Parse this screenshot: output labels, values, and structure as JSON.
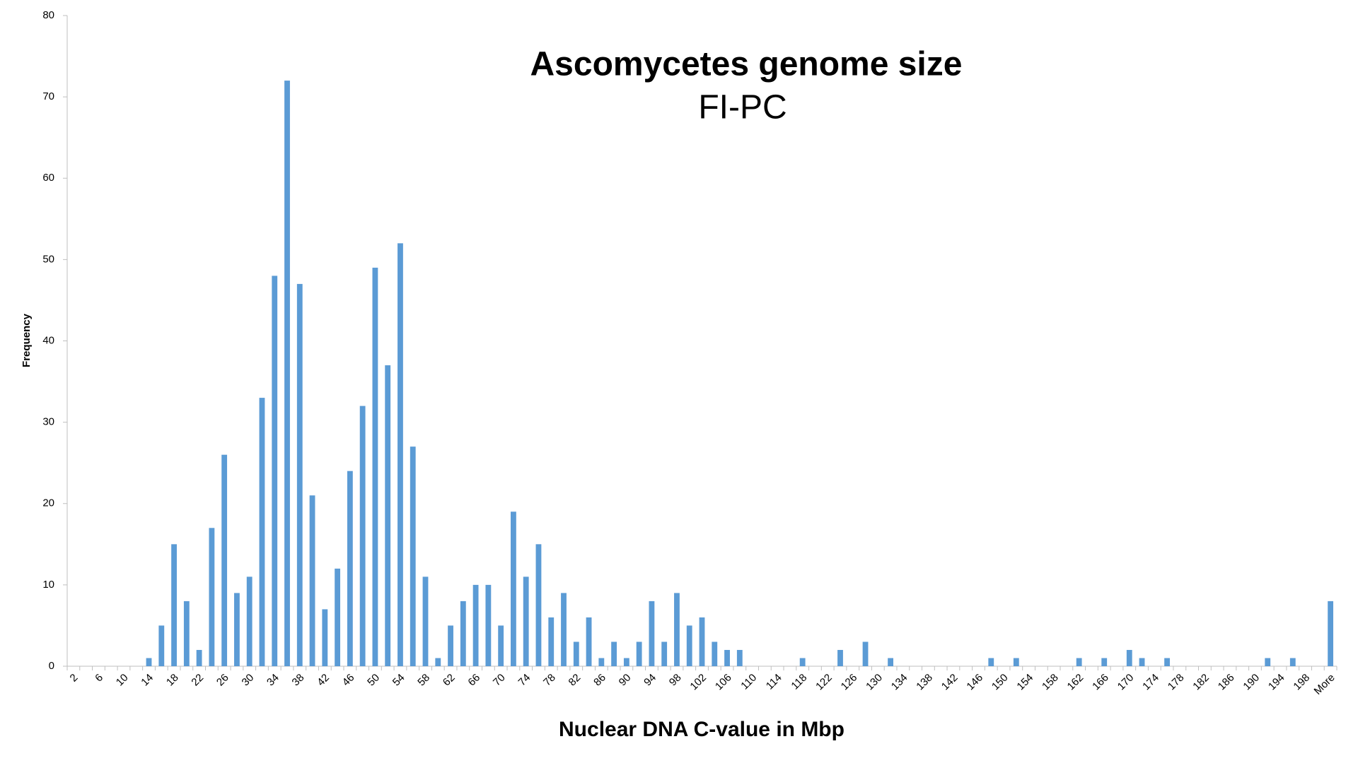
{
  "chart_data": {
    "type": "bar",
    "title": "Ascomycetes genome size",
    "subtitle": "FI-PC",
    "x_label": "Nuclear DNA C-value in Mbp",
    "y_label": "Frequency",
    "categories": [
      "2",
      null,
      "6",
      null,
      "10",
      null,
      "14",
      null,
      "18",
      null,
      "22",
      null,
      "26",
      null,
      "30",
      null,
      "34",
      null,
      "38",
      null,
      "42",
      null,
      "46",
      null,
      "50",
      null,
      "54",
      null,
      "58",
      null,
      "62",
      null,
      "66",
      null,
      "70",
      null,
      "74",
      null,
      "78",
      null,
      "82",
      null,
      "86",
      null,
      "90",
      null,
      "94",
      null,
      "98",
      null,
      "102",
      null,
      "106",
      null,
      "110",
      null,
      "114",
      null,
      "118",
      null,
      "122",
      null,
      "126",
      null,
      "130",
      null,
      "134",
      null,
      "138",
      null,
      "142",
      null,
      "146",
      null,
      "150",
      null,
      "154",
      null,
      "158",
      null,
      "162",
      null,
      "166",
      null,
      "170",
      null,
      "174",
      null,
      "178",
      null,
      "182",
      null,
      "186",
      null,
      "190",
      null,
      "194",
      null,
      "198",
      null,
      "More"
    ],
    "values": [
      0,
      0,
      0,
      0,
      0,
      0,
      1,
      5,
      15,
      8,
      2,
      17,
      26,
      9,
      11,
      33,
      48,
      72,
      47,
      21,
      7,
      12,
      24,
      32,
      49,
      37,
      52,
      27,
      11,
      1,
      5,
      8,
      10,
      10,
      5,
      19,
      11,
      15,
      6,
      9,
      3,
      6,
      1,
      3,
      1,
      3,
      8,
      3,
      9,
      5,
      6,
      3,
      2,
      2,
      0,
      0,
      0,
      0,
      1,
      0,
      0,
      2,
      0,
      3,
      0,
      1,
      0,
      0,
      0,
      0,
      0,
      0,
      0,
      1,
      0,
      1,
      0,
      0,
      0,
      0,
      1,
      0,
      1,
      0,
      2,
      1,
      0,
      1,
      0,
      0,
      0,
      0,
      0,
      0,
      0,
      1,
      0,
      1,
      0,
      0,
      8
    ],
    "color": "#5b9bd5",
    "ylim": [
      0,
      80
    ],
    "yticks": [
      0,
      10,
      20,
      30,
      40,
      50,
      60,
      70,
      80
    ],
    "grid": false
  }
}
